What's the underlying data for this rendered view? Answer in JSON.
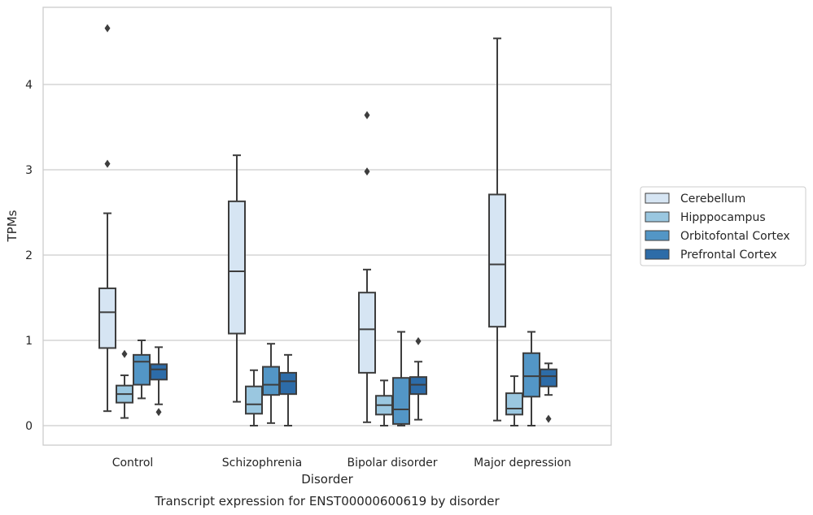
{
  "chart_data": {
    "type": "box",
    "title": "",
    "caption": "Transcript expression for ENST00000600619 by disorder",
    "xlabel": "Disorder",
    "ylabel": "TPMs",
    "ylim": [
      -0.22,
      4.9
    ],
    "yticks": [
      0,
      1,
      2,
      3,
      4
    ],
    "grid": "horizontal",
    "legend_position": "right, outside plot",
    "categories": [
      "Control",
      "Schizophrenia",
      "Bipolar disorder",
      "Major depression"
    ],
    "series": [
      {
        "name": "Cerebellum",
        "color": "#d6e5f3",
        "boxes": [
          {
            "whisker_low": 0.17,
            "q1": 0.91,
            "median": 1.33,
            "q3": 1.61,
            "whisker_high": 2.49,
            "outliers": [
              3.07,
              4.66
            ]
          },
          {
            "whisker_low": 0.28,
            "q1": 1.08,
            "median": 1.81,
            "q3": 2.63,
            "whisker_high": 3.17,
            "outliers": []
          },
          {
            "whisker_low": 0.04,
            "q1": 0.62,
            "median": 1.13,
            "q3": 1.56,
            "whisker_high": 1.83,
            "outliers": [
              2.98,
              3.64
            ]
          },
          {
            "whisker_low": 0.06,
            "q1": 1.16,
            "median": 1.89,
            "q3": 2.71,
            "whisker_high": 4.54,
            "outliers": []
          }
        ]
      },
      {
        "name": "Hipppocampus",
        "color": "#9ac7e0",
        "boxes": [
          {
            "whisker_low": 0.09,
            "q1": 0.27,
            "median": 0.37,
            "q3": 0.47,
            "whisker_high": 0.59,
            "outliers": [
              0.84
            ]
          },
          {
            "whisker_low": 0.0,
            "q1": 0.14,
            "median": 0.25,
            "q3": 0.46,
            "whisker_high": 0.65,
            "outliers": []
          },
          {
            "whisker_low": 0.0,
            "q1": 0.13,
            "median": 0.24,
            "q3": 0.35,
            "whisker_high": 0.53,
            "outliers": []
          },
          {
            "whisker_low": 0.0,
            "q1": 0.13,
            "median": 0.2,
            "q3": 0.38,
            "whisker_high": 0.58,
            "outliers": []
          }
        ]
      },
      {
        "name": "Orbitofontal Cortex",
        "color": "#5396c6",
        "boxes": [
          {
            "whisker_low": 0.32,
            "q1": 0.48,
            "median": 0.75,
            "q3": 0.83,
            "whisker_high": 1.0,
            "outliers": []
          },
          {
            "whisker_low": 0.03,
            "q1": 0.36,
            "median": 0.48,
            "q3": 0.69,
            "whisker_high": 0.96,
            "outliers": []
          },
          {
            "whisker_low": 0.0,
            "q1": 0.02,
            "median": 0.19,
            "q3": 0.56,
            "whisker_high": 1.1,
            "outliers": []
          },
          {
            "whisker_low": 0.0,
            "q1": 0.34,
            "median": 0.58,
            "q3": 0.85,
            "whisker_high": 1.1,
            "outliers": []
          }
        ]
      },
      {
        "name": "Prefrontal Cortex",
        "color": "#2d6ca8",
        "boxes": [
          {
            "whisker_low": 0.25,
            "q1": 0.54,
            "median": 0.66,
            "q3": 0.72,
            "whisker_high": 0.92,
            "outliers": [
              0.16
            ]
          },
          {
            "whisker_low": 0.0,
            "q1": 0.37,
            "median": 0.52,
            "q3": 0.62,
            "whisker_high": 0.83,
            "outliers": []
          },
          {
            "whisker_low": 0.07,
            "q1": 0.37,
            "median": 0.48,
            "q3": 0.57,
            "whisker_high": 0.75,
            "outliers": [
              0.99
            ]
          },
          {
            "whisker_low": 0.36,
            "q1": 0.46,
            "median": 0.58,
            "q3": 0.66,
            "whisker_high": 0.73,
            "outliers": [
              0.08
            ]
          }
        ]
      }
    ]
  }
}
